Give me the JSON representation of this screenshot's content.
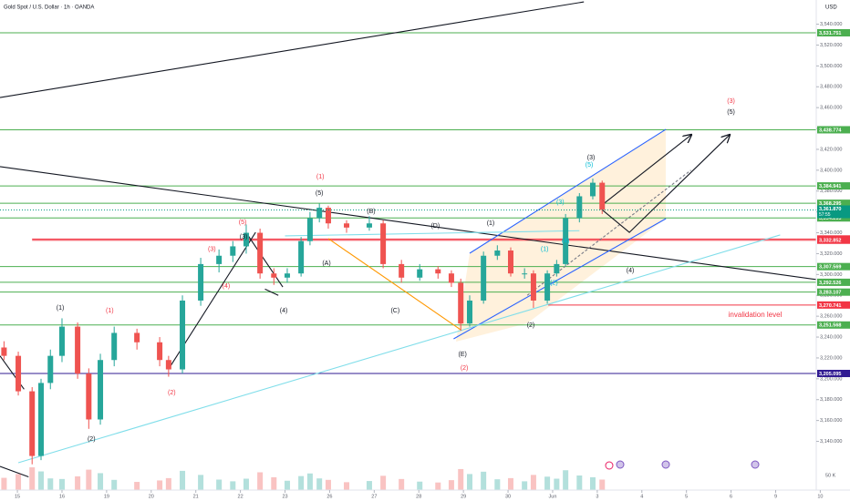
{
  "chart_data": {
    "type": "candlestick",
    "title": "Gold Spot / U.S. Dollar · 1h · OANDA",
    "currency": "USD",
    "up_color": "#26a69a",
    "down_color": "#ef5350",
    "xlim": [
      -0.39,
      17.91
    ],
    "ylim": [
      3093.3,
      3563.2
    ],
    "xticks": [
      {
        "value": 0,
        "label": "15"
      },
      {
        "value": 1,
        "label": "16"
      },
      {
        "value": 2,
        "label": "19"
      },
      {
        "value": 3,
        "label": "20"
      },
      {
        "value": 4,
        "label": "21"
      },
      {
        "value": 5,
        "label": "22"
      },
      {
        "value": 6,
        "label": "23"
      },
      {
        "value": 7,
        "label": "26"
      },
      {
        "value": 8,
        "label": "27"
      },
      {
        "value": 9,
        "label": "28"
      },
      {
        "value": 10,
        "label": "29"
      },
      {
        "value": 11,
        "label": "30"
      },
      {
        "value": 12,
        "label": "Jun"
      },
      {
        "value": 13,
        "label": "3"
      },
      {
        "value": 14,
        "label": "4"
      },
      {
        "value": 15,
        "label": "5"
      },
      {
        "value": 16,
        "label": "6"
      },
      {
        "value": 17,
        "label": "9"
      },
      {
        "value": 18,
        "label": "10"
      }
    ],
    "yticks": [
      {
        "value": 3140,
        "label": "3,140.000"
      },
      {
        "value": 3160,
        "label": "3,160.000"
      },
      {
        "value": 3180,
        "label": "3,180.000"
      },
      {
        "value": 3200,
        "label": "3,200.000"
      },
      {
        "value": 3220,
        "label": "3,220.000"
      },
      {
        "value": 3240,
        "label": "3,240.000"
      },
      {
        "value": 3260,
        "label": "3,260.000"
      },
      {
        "value": 3280,
        "label": "3,280.000"
      },
      {
        "value": 3300,
        "label": "3,300.000"
      },
      {
        "value": 3320,
        "label": "3,320.000"
      },
      {
        "value": 3340,
        "label": "3,340.000"
      },
      {
        "value": 3360,
        "label": "3,360.000"
      },
      {
        "value": 3380,
        "label": "3,380.000"
      },
      {
        "value": 3400,
        "label": "3,400.000"
      },
      {
        "value": 3420,
        "label": "3,420.000"
      },
      {
        "value": 3440,
        "label": "3,440.000"
      },
      {
        "value": 3460,
        "label": "3,460.000"
      },
      {
        "value": 3480,
        "label": "3,480.000"
      },
      {
        "value": 3500,
        "label": "3,500.000"
      },
      {
        "value": 3520,
        "label": "3,520.000"
      },
      {
        "value": 3540,
        "label": "3,540.000"
      }
    ],
    "candles": {
      "x": [
        -0.3,
        0.02,
        0.33,
        0.53,
        0.74,
        1.0,
        1.35,
        1.6,
        1.86,
        2.17,
        2.68,
        3.19,
        3.39,
        3.7,
        4.11,
        4.52,
        4.83,
        5.13,
        5.44,
        5.75,
        6.05,
        6.36,
        6.56,
        6.77,
        6.97,
        7.38,
        7.89,
        8.2,
        8.61,
        9.02,
        9.43,
        9.73,
        9.94,
        10.14,
        10.45,
        10.76,
        11.06,
        11.37,
        11.57,
        11.88,
        12.09,
        12.29,
        12.6,
        12.9,
        13.11
      ],
      "open": [
        3230,
        3222,
        3188,
        3126,
        3196,
        3222,
        3250,
        3205,
        3161,
        3218,
        3244,
        3235,
        3218,
        3209,
        3275,
        3310,
        3318,
        3327,
        3340,
        3301,
        3297,
        3301,
        3332,
        3354,
        3364,
        3349,
        3345,
        3349,
        3310,
        3297,
        3305,
        3301,
        3292,
        3253,
        3275,
        3318,
        3323,
        3301,
        3301,
        3275,
        3301,
        3310,
        3354,
        3375,
        3388
      ],
      "high": [
        3236,
        3226,
        3192,
        3200,
        3228,
        3258,
        3254,
        3210,
        3224,
        3250,
        3248,
        3240,
        3222,
        3280,
        3316,
        3324,
        3332,
        3348,
        3344,
        3306,
        3306,
        3336,
        3360,
        3368,
        3366,
        3352,
        3356,
        3352,
        3314,
        3310,
        3308,
        3304,
        3296,
        3280,
        3322,
        3328,
        3326,
        3306,
        3304,
        3304,
        3314,
        3358,
        3378,
        3392,
        3390
      ],
      "low": [
        3218,
        3184,
        3118,
        3122,
        3190,
        3216,
        3200,
        3152,
        3156,
        3212,
        3228,
        3212,
        3202,
        3205,
        3270,
        3302,
        3312,
        3320,
        3296,
        3290,
        3292,
        3298,
        3328,
        3350,
        3344,
        3340,
        3342,
        3306,
        3292,
        3294,
        3296,
        3288,
        3246,
        3250,
        3272,
        3314,
        3298,
        3296,
        3268,
        3272,
        3298,
        3308,
        3350,
        3372,
        3358
      ],
      "close": [
        3222,
        3188,
        3126,
        3196,
        3222,
        3250,
        3205,
        3161,
        3218,
        3244,
        3235,
        3218,
        3209,
        3275,
        3310,
        3318,
        3327,
        3340,
        3301,
        3297,
        3301,
        3332,
        3354,
        3364,
        3349,
        3345,
        3349,
        3310,
        3297,
        3305,
        3301,
        3292,
        3253,
        3275,
        3318,
        3323,
        3301,
        3301,
        3275,
        3301,
        3310,
        3354,
        3375,
        3388,
        3362
      ],
      "volume": [
        42,
        55,
        78,
        64,
        40,
        38,
        47,
        70,
        58,
        35,
        28,
        33,
        41,
        66,
        52,
        36,
        30,
        39,
        61,
        44,
        32,
        48,
        57,
        40,
        35,
        27,
        31,
        49,
        38,
        29,
        26,
        34,
        72,
        55,
        63,
        37,
        41,
        30,
        52,
        46,
        39,
        68,
        50,
        44,
        36
      ]
    },
    "vlim": [
      0,
      150
    ],
    "vticks": [
      {
        "value": 50,
        "label": "50 K"
      }
    ],
    "levels": [
      {
        "value": 3531.751,
        "label": "3,531.751",
        "color": "#4caf50"
      },
      {
        "value": 3438.774,
        "label": "3,438.774",
        "color": "#4caf50"
      },
      {
        "value": 3384.941,
        "label": "3,384.941",
        "color": "#4caf50"
      },
      {
        "value": 3368.295,
        "label": "3,368.295",
        "color": "#4caf50"
      },
      {
        "value": 3354.235,
        "label": "3,354.235",
        "color": "#4caf50"
      },
      {
        "value": 3334.08,
        "label": "3,334.080",
        "color": "#f23645",
        "from": 0.33
      },
      {
        "value": 3332.852,
        "label": "3,332.852",
        "color": "#f23645",
        "from": 0.33
      },
      {
        "value": 3307.569,
        "label": "3,307.569",
        "color": "#4caf50"
      },
      {
        "value": 3292.526,
        "label": "3,292.526",
        "color": "#4caf50"
      },
      {
        "value": 3283.107,
        "label": "3,283.107",
        "color": "#4caf50"
      },
      {
        "value": 3270.741,
        "label": "3,270.741",
        "color": "#f23645",
        "from": 11.9
      },
      {
        "value": 3251.568,
        "label": "3,251.568",
        "color": "#4caf50"
      },
      {
        "value": 3205.095,
        "label": "3,205.095",
        "color": "#311b92"
      }
    ],
    "current": {
      "value": 3361.87,
      "label": "3,361.870",
      "countdown": "57:55",
      "color": "#089981"
    },
    "lines": [
      {
        "x": [
          -0.39,
          12.7
        ],
        "y": [
          3469.7,
          3561.4
        ],
        "color": "#131722"
      },
      {
        "x": [
          -0.39,
          18.67
        ],
        "y": [
          3403.4,
          3290.7
        ],
        "color": "#131722"
      },
      {
        "x": [
          10.14,
          14.54
        ],
        "y": [
          3320.4,
          3439.2
        ],
        "color": "#2962ff"
      },
      {
        "x": [
          9.78,
          14.54
        ],
        "y": [
          3238.3,
          3353.6
        ],
        "color": "#2962ff"
      },
      {
        "x": [
          0.02,
          17.1
        ],
        "y": [
          3119.5,
          3337.9
        ],
        "color": "#80deea"
      },
      {
        "x": [
          6.0,
          12.6
        ],
        "y": [
          3337,
          3342
        ],
        "color": "#80deea"
      },
      {
        "x": [
          3.39,
          5.34
        ],
        "y": [
          3209.4,
          3340.4
        ],
        "color": "#131722"
      },
      {
        "x": [
          5.13,
          5.95
        ],
        "y": [
          3340.0,
          3288.0
        ],
        "color": "#131722"
      },
      {
        "x": [
          5.55,
          5.85
        ],
        "y": [
          3286.0,
          3280.0
        ],
        "color": "#131722"
      },
      {
        "x": [
          6.97,
          9.94
        ],
        "y": [
          3334.4,
          3247.0
        ],
        "color": "#ff9800"
      },
      {
        "x": [
          -0.39,
          0.15
        ],
        "y": [
          3222.0,
          3190.0
        ],
        "color": "#131722"
      },
      {
        "x": [
          -0.39,
          0.25
        ],
        "y": [
          3116.0,
          3106.0
        ],
        "color": "#131722"
      },
      {
        "x": [
          11.43,
          15.1
        ],
        "y": [
          3280.0,
          3400.0
        ],
        "color": "#787b86",
        "dash": true
      },
      {
        "x": [
          13.11,
          15.11
        ],
        "y": [
          3366.7,
          3434.0
        ],
        "color": "#131722",
        "arrow": true
      },
      {
        "x": [
          13.11,
          13.72,
          15.97
        ],
        "y": [
          3362.0,
          3340.4,
          3434.0
        ],
        "color": "#131722",
        "arrow": true
      }
    ],
    "annotations": [
      {
        "text": "(1)",
        "x": 0.96,
        "y": 3268,
        "color": "#131722"
      },
      {
        "text": "(1)",
        "x": 2.07,
        "y": 3265.4,
        "color": "#f23645"
      },
      {
        "text": "(2)",
        "x": 1.66,
        "y": 3142,
        "color": "#131722"
      },
      {
        "text": "(2)",
        "x": 3.46,
        "y": 3186.8,
        "color": "#f23645"
      },
      {
        "text": "(3)",
        "x": 5.07,
        "y": 3336,
        "color": "#131722"
      },
      {
        "text": "(3)",
        "x": 4.36,
        "y": 3324,
        "color": "#f23645"
      },
      {
        "text": "(4)",
        "x": 4.68,
        "y": 3289,
        "color": "#f23645"
      },
      {
        "text": "(5)",
        "x": 5.05,
        "y": 3350,
        "color": "#f23645"
      },
      {
        "text": "(4)",
        "x": 5.97,
        "y": 3265.4,
        "color": "#131722"
      },
      {
        "text": "(1)",
        "x": 6.79,
        "y": 3393.7,
        "color": "#f23645"
      },
      {
        "text": "(5)",
        "x": 6.77,
        "y": 3378,
        "color": "#131722"
      },
      {
        "text": "(A)",
        "x": 6.93,
        "y": 3310.8,
        "color": "#131722"
      },
      {
        "text": "(B)",
        "x": 7.93,
        "y": 3360.6,
        "color": "#131722"
      },
      {
        "text": "(C)",
        "x": 8.47,
        "y": 3265.4,
        "color": "#131722"
      },
      {
        "text": "(D)",
        "x": 9.37,
        "y": 3346.6,
        "color": "#131722"
      },
      {
        "text": "(E)",
        "x": 9.98,
        "y": 3223.5,
        "color": "#131722"
      },
      {
        "text": "(2)",
        "x": 10.02,
        "y": 3210.4,
        "color": "#f23645"
      },
      {
        "text": "(1)",
        "x": 10.61,
        "y": 3349.2,
        "color": "#131722"
      },
      {
        "text": "(2)",
        "x": 11.51,
        "y": 3251.4,
        "color": "#131722"
      },
      {
        "text": "(3)",
        "x": 12.17,
        "y": 3369,
        "color": "#00bcd4"
      },
      {
        "text": "(1)",
        "x": 11.82,
        "y": 3324,
        "color": "#00bcd4"
      },
      {
        "text": "(4)",
        "x": 12.29,
        "y": 3332,
        "color": "#00bcd4"
      },
      {
        "text": "(2)",
        "x": 12.03,
        "y": 3292,
        "color": "#00bcd4"
      },
      {
        "text": "(3)",
        "x": 12.86,
        "y": 3412,
        "color": "#131722"
      },
      {
        "text": "(5)",
        "x": 12.82,
        "y": 3405,
        "color": "#00bcd4"
      },
      {
        "text": "(4)",
        "x": 13.74,
        "y": 3303.8,
        "color": "#131722"
      },
      {
        "text": "(3)",
        "x": 16.0,
        "y": 3466.3,
        "color": "#f23645"
      },
      {
        "text": "(5)",
        "x": 16.0,
        "y": 3455.8,
        "color": "#131722"
      },
      {
        "text": "invalidation level",
        "x": 16.54,
        "y": 3261,
        "color": "#f23645"
      }
    ]
  }
}
